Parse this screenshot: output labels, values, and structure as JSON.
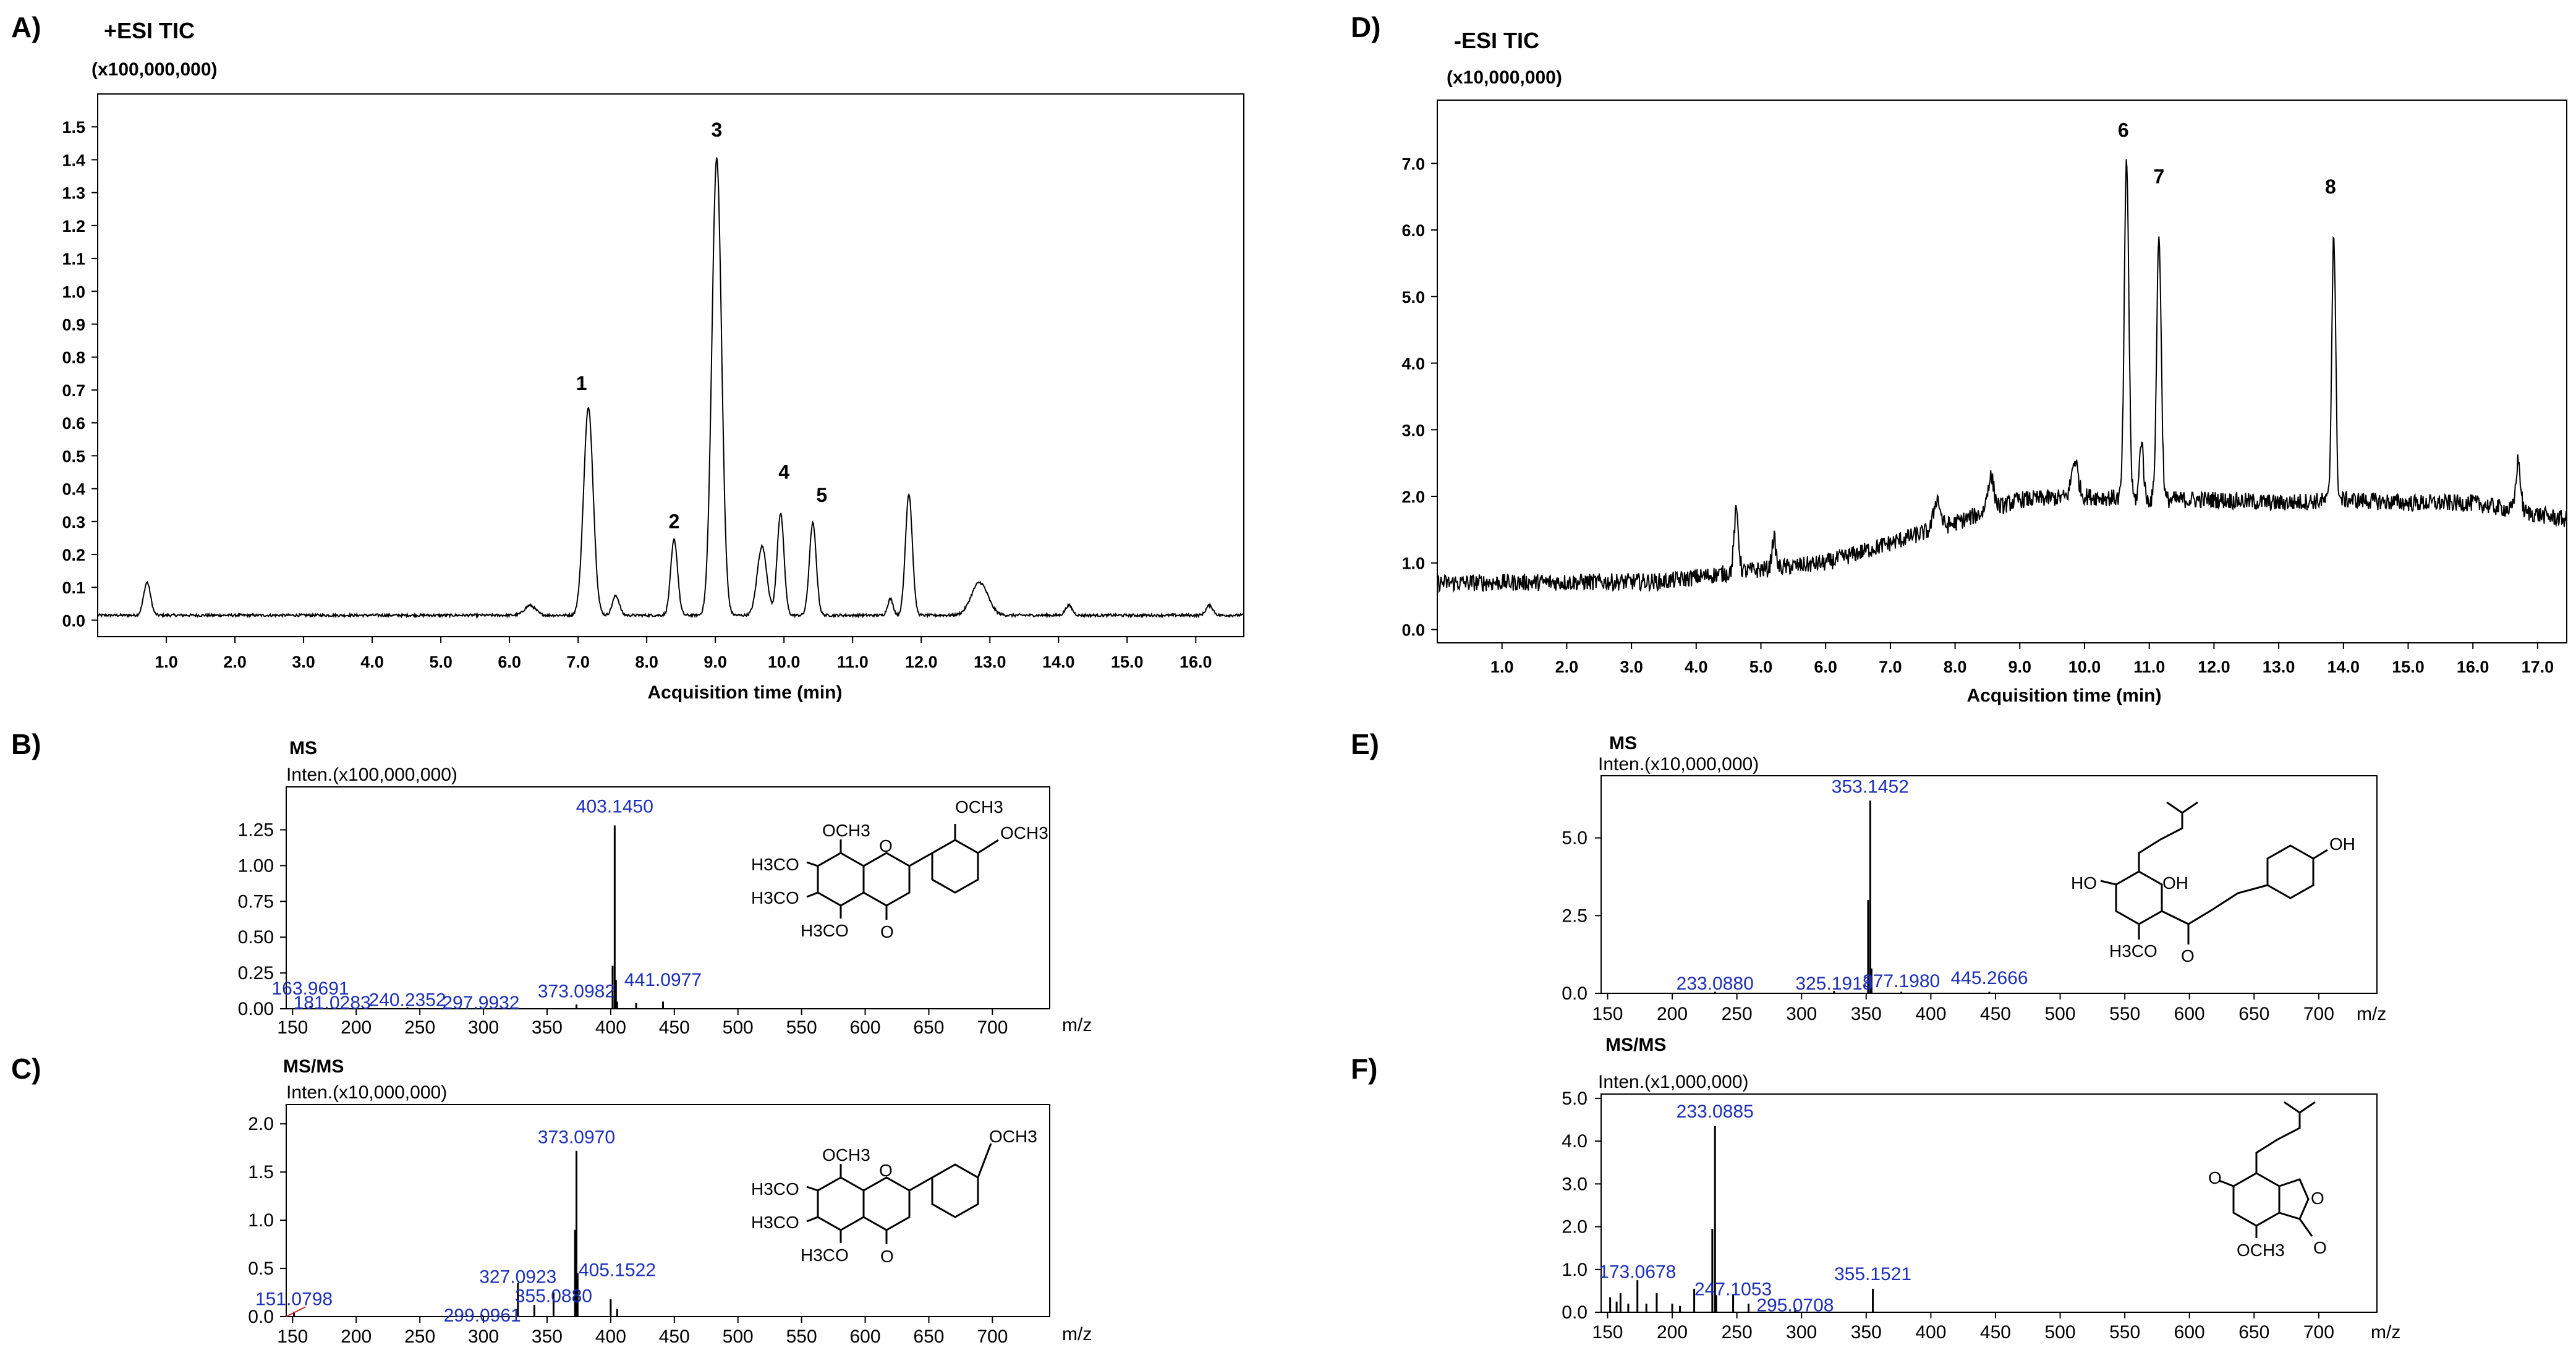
{
  "chart_data": [
    {
      "panel": "A)",
      "type": "line",
      "title": "+ESI TIC",
      "y_multiplier": "(x100,000,000)",
      "xlabel": "Acquisition time (min)",
      "xlim": [
        0,
        16.7
      ],
      "ylim": [
        -0.05,
        1.6
      ],
      "x_ticks": [
        "1.0",
        "2.0",
        "3.0",
        "4.0",
        "5.0",
        "6.0",
        "7.0",
        "8.0",
        "9.0",
        "10.0",
        "11.0",
        "12.0",
        "13.0",
        "14.0",
        "15.0",
        "16.0"
      ],
      "y_ticks": [
        "0.0",
        "0.1",
        "0.2",
        "0.3",
        "0.4",
        "0.5",
        "0.6",
        "0.7",
        "0.8",
        "0.9",
        "1.0",
        "1.1",
        "1.2",
        "1.3",
        "1.4",
        "1.5"
      ],
      "baseline": 0.015,
      "noise": 0.004,
      "peaks": [
        {
          "x": 0.72,
          "h": 0.1,
          "w": 0.05
        },
        {
          "x": 6.3,
          "h": 0.03,
          "w": 0.08
        },
        {
          "x": 7.15,
          "h": 0.63,
          "w": 0.07
        },
        {
          "x": 7.55,
          "h": 0.06,
          "w": 0.05
        },
        {
          "x": 8.4,
          "h": 0.23,
          "w": 0.05
        },
        {
          "x": 9.02,
          "h": 1.39,
          "w": 0.07
        },
        {
          "x": 9.68,
          "h": 0.21,
          "w": 0.07
        },
        {
          "x": 9.95,
          "h": 0.31,
          "w": 0.05
        },
        {
          "x": 10.42,
          "h": 0.28,
          "w": 0.05
        },
        {
          "x": 11.55,
          "h": 0.05,
          "w": 0.04
        },
        {
          "x": 11.82,
          "h": 0.37,
          "w": 0.05
        },
        {
          "x": 12.85,
          "h": 0.1,
          "w": 0.12
        },
        {
          "x": 14.15,
          "h": 0.03,
          "w": 0.05
        },
        {
          "x": 16.2,
          "h": 0.03,
          "w": 0.05
        }
      ],
      "annotations": [
        {
          "text": "1",
          "x": 7.05,
          "y": 0.7
        },
        {
          "text": "2",
          "x": 8.4,
          "y": 0.28
        },
        {
          "text": "3",
          "x": 9.02,
          "y": 1.47
        },
        {
          "text": "4",
          "x": 10.0,
          "y": 0.43
        },
        {
          "text": "5",
          "x": 10.55,
          "y": 0.36
        }
      ]
    },
    {
      "panel": "D)",
      "type": "line",
      "title": "-ESI TIC",
      "y_multiplier": "(x10,000,000)",
      "xlabel": "Acquisition time (min)",
      "xlim": [
        0,
        17.45
      ],
      "ylim": [
        -0.2,
        7.95
      ],
      "x_ticks": [
        "1.0",
        "2.0",
        "3.0",
        "4.0",
        "5.0",
        "6.0",
        "7.0",
        "8.0",
        "9.0",
        "10.0",
        "11.0",
        "12.0",
        "13.0",
        "14.0",
        "15.0",
        "16.0",
        "17.0"
      ],
      "y_ticks": [
        "0.0",
        "1.0",
        "2.0",
        "3.0",
        "4.0",
        "5.0",
        "6.0",
        "7.0"
      ],
      "baseline_points": [
        [
          0,
          0.7
        ],
        [
          3.5,
          0.72
        ],
        [
          4.5,
          0.85
        ],
        [
          6.0,
          1.0
        ],
        [
          7.0,
          1.3
        ],
        [
          8.0,
          1.6
        ],
        [
          9.0,
          1.95
        ],
        [
          10.0,
          2.0
        ],
        [
          11.0,
          1.95
        ],
        [
          12.0,
          1.95
        ],
        [
          13.0,
          1.9
        ],
        [
          14.0,
          1.95
        ],
        [
          15.0,
          1.9
        ],
        [
          16.0,
          1.9
        ],
        [
          17.45,
          1.65
        ]
      ],
      "noise": 0.13,
      "peaks": [
        {
          "x": 4.62,
          "h": 0.9,
          "w": 0.035
        },
        {
          "x": 5.2,
          "h": 0.45,
          "w": 0.03
        },
        {
          "x": 7.72,
          "h": 0.45,
          "w": 0.05
        },
        {
          "x": 8.55,
          "h": 0.5,
          "w": 0.05
        },
        {
          "x": 9.85,
          "h": 0.55,
          "w": 0.05
        },
        {
          "x": 10.65,
          "h": 5.05,
          "w": 0.035
        },
        {
          "x": 10.88,
          "h": 0.9,
          "w": 0.03
        },
        {
          "x": 11.15,
          "h": 3.95,
          "w": 0.035
        },
        {
          "x": 13.85,
          "h": 4.0,
          "w": 0.03
        },
        {
          "x": 16.7,
          "h": 0.75,
          "w": 0.035
        }
      ],
      "annotations": [
        {
          "text": "6",
          "x": 10.6,
          "y": 7.4
        },
        {
          "text": "7",
          "x": 11.15,
          "y": 6.7
        },
        {
          "text": "8",
          "x": 13.8,
          "y": 6.55
        }
      ]
    },
    {
      "panel": "B)",
      "type": "bar",
      "title": "MS",
      "y_multiplier": "Inten.(x100,000,000)",
      "xlabel": "m/z",
      "xlim": [
        145,
        745
      ],
      "ylim": [
        0,
        1.55
      ],
      "x_ticks": [
        "150",
        "200",
        "250",
        "300",
        "350",
        "400",
        "450",
        "500",
        "550",
        "600",
        "650",
        "700"
      ],
      "y_ticks": [
        "0.00",
        "0.25",
        "0.50",
        "0.75",
        "1.00",
        "1.25"
      ],
      "sticks": [
        [
          163.97,
          0.02
        ],
        [
          181.03,
          0.01
        ],
        [
          240.24,
          0.01
        ],
        [
          297.99,
          0.01
        ],
        [
          373.1,
          0.03
        ],
        [
          401.5,
          0.3
        ],
        [
          403.145,
          1.28
        ],
        [
          404.1,
          0.2
        ],
        [
          405.1,
          0.05
        ],
        [
          420,
          0.04
        ],
        [
          441.1,
          0.05
        ]
      ],
      "labels": [
        {
          "text": "403.1450",
          "mz": 403.145,
          "y": 1.37
        },
        {
          "text": "163.9691",
          "mz": 163.97,
          "y": 0.1
        },
        {
          "text": "181.0283",
          "mz": 181.03,
          "y": 0.0
        },
        {
          "text": "240.2352",
          "mz": 240.24,
          "y": 0.02
        },
        {
          "text": "297.9932",
          "mz": 297.99,
          "y": 0.0
        },
        {
          "text": "373.0982",
          "mz": 373.1,
          "y": 0.08
        },
        {
          "text": "441.0977",
          "mz": 441.1,
          "y": 0.16
        }
      ]
    },
    {
      "panel": "C)",
      "type": "bar",
      "title": "MS/MS",
      "y_multiplier": "Inten.(x10,000,000)",
      "xlabel": "m/z",
      "xlim": [
        145,
        745
      ],
      "ylim": [
        0,
        2.2
      ],
      "x_ticks": [
        "150",
        "200",
        "250",
        "300",
        "350",
        "400",
        "450",
        "500",
        "550",
        "600",
        "650",
        "700"
      ],
      "y_ticks": [
        "0.0",
        "0.5",
        "1.0",
        "1.5",
        "2.0"
      ],
      "sticks": [
        [
          151.08,
          0.05
        ],
        [
          299.1,
          0.02
        ],
        [
          327.09,
          0.35
        ],
        [
          340,
          0.12
        ],
        [
          355.09,
          0.25
        ],
        [
          372,
          0.9
        ],
        [
          373.097,
          1.72
        ],
        [
          374,
          0.45
        ],
        [
          400,
          0.18
        ],
        [
          405.15,
          0.08
        ]
      ],
      "labels": [
        {
          "text": "373.0970",
          "mz": 373.097,
          "y": 1.8
        },
        {
          "text": "151.0798",
          "mz": 151.08,
          "y": 0.12
        },
        {
          "text": "299.0961",
          "mz": 299.1,
          "y": -0.05
        },
        {
          "text": "327.0923",
          "mz": 327.09,
          "y": 0.35
        },
        {
          "text": "355.0880",
          "mz": 355.09,
          "y": 0.15
        },
        {
          "text": "405.1522",
          "mz": 405.15,
          "y": 0.42
        }
      ]
    },
    {
      "panel": "E)",
      "type": "bar",
      "title": "MS",
      "y_multiplier": "Inten.(x10,000,000)",
      "xlabel": "m/z",
      "xlim": [
        145,
        745
      ],
      "ylim": [
        0,
        7.0
      ],
      "x_ticks": [
        "150",
        "200",
        "250",
        "300",
        "350",
        "400",
        "450",
        "500",
        "550",
        "600",
        "650",
        "700"
      ],
      "y_ticks": [
        "0.0",
        "2.5",
        "5.0"
      ],
      "sticks": [
        [
          233.09,
          0.05
        ],
        [
          325.19,
          0.08
        ],
        [
          351.5,
          3.0
        ],
        [
          353.145,
          6.2
        ],
        [
          354.1,
          0.8
        ],
        [
          377.2,
          0.05
        ],
        [
          445.27,
          0.05
        ]
      ],
      "labels": [
        {
          "text": "353.1452",
          "mz": 353.145,
          "y": 6.45
        },
        {
          "text": "233.0880",
          "mz": 233.09,
          "y": 0.12
        },
        {
          "text": "325.1918",
          "mz": 325.19,
          "y": 0.12
        },
        {
          "text": "377.1980",
          "mz": 377.2,
          "y": 0.2
        },
        {
          "text": "445.2666",
          "mz": 445.27,
          "y": 0.3
        }
      ]
    },
    {
      "panel": "F)",
      "type": "bar",
      "title": "MS/MS",
      "y_multiplier": "Inten.(x1,000,000)",
      "xlabel": "m/z",
      "xlim": [
        145,
        745
      ],
      "ylim": [
        0,
        5.1
      ],
      "x_ticks": [
        "150",
        "200",
        "250",
        "300",
        "350",
        "400",
        "450",
        "500",
        "550",
        "600",
        "650",
        "700"
      ],
      "y_ticks": [
        "0.0",
        "1.0",
        "2.0",
        "3.0",
        "4.0",
        "5.0"
      ],
      "sticks": [
        [
          152,
          0.35
        ],
        [
          157,
          0.25
        ],
        [
          160,
          0.45
        ],
        [
          166,
          0.2
        ],
        [
          173.07,
          0.75
        ],
        [
          180,
          0.2
        ],
        [
          188,
          0.45
        ],
        [
          200,
          0.2
        ],
        [
          206,
          0.15
        ],
        [
          217,
          0.55
        ],
        [
          231,
          1.95
        ],
        [
          233.088,
          4.35
        ],
        [
          234,
          0.4
        ],
        [
          247.11,
          0.4
        ],
        [
          259,
          0.2
        ],
        [
          295.07,
          0.1
        ],
        [
          355.15,
          0.55
        ]
      ],
      "labels": [
        {
          "text": "233.0885",
          "mz": 233.088,
          "y": 4.55
        },
        {
          "text": "173.0678",
          "mz": 173.07,
          "y": 0.8
        },
        {
          "text": "247.1053",
          "mz": 247.11,
          "y": 0.4
        },
        {
          "text": "295.0708",
          "mz": 295.07,
          "y": 0.02
        },
        {
          "text": "355.1521",
          "mz": 355.15,
          "y": 0.75
        }
      ]
    }
  ],
  "structure_labels": {
    "b_och3_top_right": "OCH3",
    "b_och3_right": "OCH3",
    "b_och3_top": "OCH3",
    "b_h3co_1": "H3CO",
    "b_h3co_2": "H3CO",
    "b_h3co_3": "H3CO",
    "b_o_ring": "O",
    "b_o_ketone": "O",
    "c_och3_para": "OCH3",
    "c_och3_top": "OCH3",
    "c_h3co_1": "H3CO",
    "c_h3co_2": "H3CO",
    "c_h3co_3": "H3CO",
    "c_o_ring": "O",
    "c_o_ketone": "O",
    "e_oh_right": "OH",
    "e_oh_mid": "OH",
    "e_ho_left": "HO",
    "e_h3co": "H3CO",
    "e_o_ketone": "O",
    "f_o_minus": "O",
    "f_o_ring": "O",
    "f_o_ketone": "O",
    "f_och3": "OCH3"
  },
  "colors": {
    "line": "#000000",
    "label": "#1c2fb8",
    "accent": "#cc2222"
  }
}
